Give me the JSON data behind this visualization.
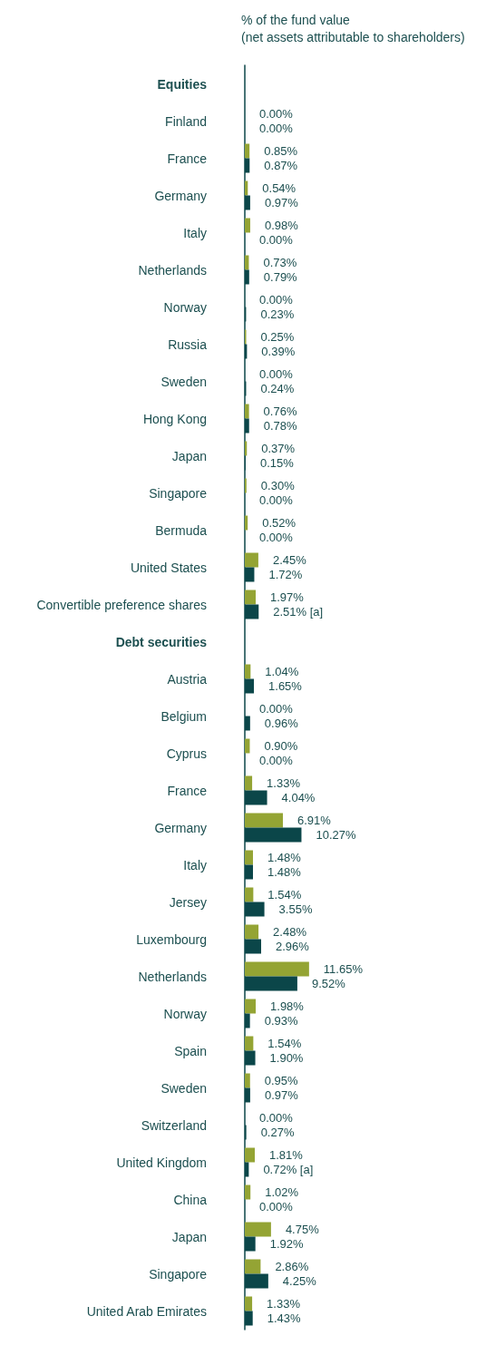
{
  "chart_data": {
    "type": "bar",
    "orientation": "horizontal",
    "xlabel": "% of the fund value\n(net assets attributable to shareholders)",
    "categories": [
      "Equities",
      "Finland",
      "France",
      "Germany",
      "Italy",
      "Netherlands",
      "Norway",
      "Russia",
      "Sweden",
      "Hong Kong",
      "Japan",
      "Singapore",
      "Bermuda",
      "United States",
      "Convertible preference shares",
      "Debt securities",
      "Austria",
      "Belgium",
      "Cyprus",
      "France",
      "Germany",
      "Italy",
      "Jersey",
      "Luxembourg",
      "Netherlands",
      "Norway",
      "Spain",
      "Sweden",
      "Switzerland",
      "United Kingdom",
      "China",
      "Japan",
      "Singapore",
      "United Arab Emirates"
    ],
    "series": [
      {
        "color": "#94a434",
        "values": [
          null,
          0.0,
          0.85,
          0.54,
          0.98,
          0.73,
          0.0,
          0.25,
          0.0,
          0.76,
          0.37,
          0.3,
          0.52,
          2.45,
          1.97,
          null,
          1.04,
          0.0,
          0.9,
          1.33,
          6.91,
          1.48,
          1.54,
          2.48,
          11.65,
          1.98,
          1.54,
          0.95,
          0.0,
          1.81,
          1.02,
          4.75,
          2.86,
          1.33
        ],
        "value_labels": [
          null,
          "0.00%",
          "0.85%",
          "0.54%",
          "0.98%",
          "0.73%",
          "0.00%",
          "0.25%",
          "0.00%",
          "0.76%",
          "0.37%",
          "0.30%",
          "0.52%",
          "2.45%",
          "1.97%",
          null,
          "1.04%",
          "0.00%",
          "0.90%",
          "1.33%",
          "6.91%",
          "1.48%",
          "1.54%",
          "2.48%",
          "11.65%",
          "1.98%",
          "1.54%",
          "0.95%",
          "0.00%",
          "1.81%",
          "1.02%",
          "4.75%",
          "2.86%",
          "1.33%"
        ]
      },
      {
        "color": "#0b4649",
        "values": [
          null,
          0.0,
          0.87,
          0.97,
          0.0,
          0.79,
          0.23,
          0.39,
          0.24,
          0.78,
          0.15,
          0.0,
          0.0,
          1.72,
          2.51,
          null,
          1.65,
          0.96,
          0.0,
          4.04,
          10.27,
          1.48,
          3.55,
          2.96,
          9.52,
          0.93,
          1.9,
          0.97,
          0.27,
          0.72,
          0.0,
          1.92,
          4.25,
          1.43
        ],
        "value_labels": [
          null,
          "0.00%",
          "0.87%",
          "0.97%",
          "0.00%",
          "0.79%",
          "0.23%",
          "0.39%",
          "0.24%",
          "0.78%",
          "0.15%",
          "0.00%",
          "0.00%",
          "1.72%",
          "2.51% [a]",
          null,
          "1.65%",
          "0.96%",
          "0.00%",
          "4.04%",
          "10.27%",
          "1.48%",
          "3.55%",
          "2.96%",
          "9.52%",
          "0.93%",
          "1.90%",
          "0.97%",
          "0.27%",
          "0.72% [a]",
          "0.00%",
          "1.92%",
          "4.25%",
          "1.43%"
        ]
      }
    ]
  }
}
